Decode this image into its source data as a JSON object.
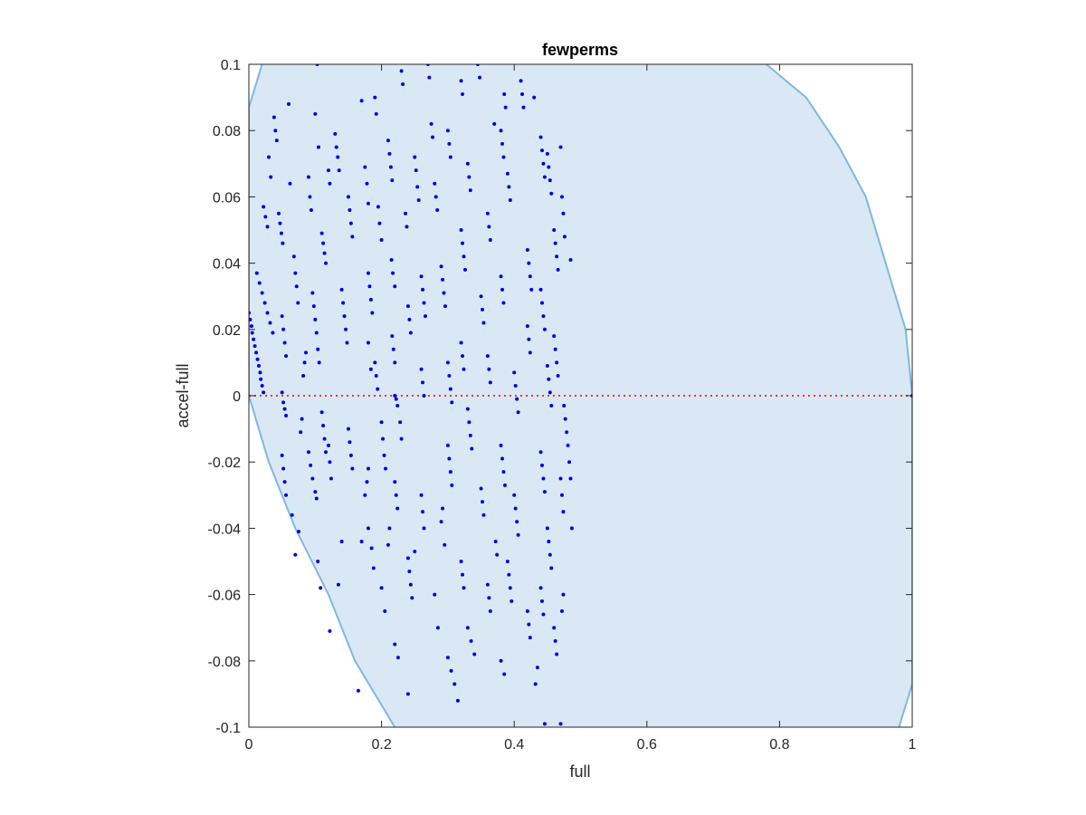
{
  "chart_data": {
    "type": "scatter",
    "title": "fewperms",
    "xlabel": "full",
    "ylabel": "accel-full",
    "xlim": [
      0,
      1
    ],
    "ylim": [
      -0.1,
      0.1
    ],
    "xticks": [
      "0",
      "0.2",
      "0.4",
      "0.6",
      "0.8",
      "1"
    ],
    "xtick_values": [
      0,
      0.2,
      0.4,
      0.6,
      0.8,
      1
    ],
    "yticks": [
      "0.1",
      "0.08",
      "0.06",
      "0.04",
      "0.02",
      "0",
      "-0.02",
      "-0.04",
      "-0.06",
      "-0.08",
      "-0.1"
    ],
    "ytick_values": [
      0.1,
      0.08,
      0.06,
      0.04,
      0.02,
      0,
      -0.02,
      -0.04,
      -0.06,
      -0.08,
      -0.1
    ],
    "grid": false,
    "legend": "none",
    "reference_line": {
      "y": 0,
      "style": "dotted",
      "color": "#e8382b"
    },
    "region": {
      "fill": "#d9e8f4",
      "edge": "#7fb8de",
      "left_boundary": [
        [
          0.02,
          0.1
        ],
        [
          0.0,
          0.087
        ],
        [
          0.0,
          0.0
        ],
        [
          0.03,
          -0.02
        ],
        [
          0.07,
          -0.04
        ],
        [
          0.12,
          -0.06
        ],
        [
          0.16,
          -0.08
        ],
        [
          0.22,
          -0.1
        ]
      ],
      "right_boundary": [
        [
          0.78,
          0.1
        ],
        [
          0.84,
          0.09
        ],
        [
          0.89,
          0.075
        ],
        [
          0.93,
          0.06
        ],
        [
          0.96,
          0.04
        ],
        [
          0.99,
          0.02
        ],
        [
          1.0,
          0.0
        ],
        [
          1.0,
          -0.087
        ],
        [
          0.98,
          -0.1
        ]
      ]
    },
    "points_color": "#0000e6",
    "points": [
      [
        0.0,
        0.025
      ],
      [
        0.002,
        0.023
      ],
      [
        0.004,
        0.021
      ],
      [
        0.005,
        0.019
      ],
      [
        0.007,
        0.017
      ],
      [
        0.009,
        0.015
      ],
      [
        0.011,
        0.013
      ],
      [
        0.013,
        0.011
      ],
      [
        0.015,
        0.009
      ],
      [
        0.017,
        0.007
      ],
      [
        0.018,
        0.005
      ],
      [
        0.02,
        0.003
      ],
      [
        0.022,
        0.001
      ],
      [
        0.012,
        0.037
      ],
      [
        0.016,
        0.034
      ],
      [
        0.02,
        0.031
      ],
      [
        0.024,
        0.028
      ],
      [
        0.028,
        0.025
      ],
      [
        0.032,
        0.022
      ],
      [
        0.036,
        0.019
      ],
      [
        0.022,
        0.057
      ],
      [
        0.025,
        0.054
      ],
      [
        0.028,
        0.051
      ],
      [
        0.03,
        0.072
      ],
      [
        0.033,
        0.066
      ],
      [
        0.038,
        0.084
      ],
      [
        0.04,
        0.08
      ],
      [
        0.042,
        0.077
      ],
      [
        0.045,
        0.055
      ],
      [
        0.047,
        0.052
      ],
      [
        0.049,
        0.049
      ],
      [
        0.051,
        0.046
      ],
      [
        0.05,
        0.024
      ],
      [
        0.052,
        0.02
      ],
      [
        0.054,
        0.016
      ],
      [
        0.056,
        0.012
      ],
      [
        0.05,
        0.001
      ],
      [
        0.052,
        -0.002
      ],
      [
        0.054,
        -0.004
      ],
      [
        0.056,
        -0.006
      ],
      [
        0.05,
        -0.018
      ],
      [
        0.052,
        -0.022
      ],
      [
        0.054,
        -0.026
      ],
      [
        0.056,
        -0.03
      ],
      [
        0.06,
        0.088
      ],
      [
        0.062,
        0.064
      ],
      [
        0.068,
        0.042
      ],
      [
        0.07,
        0.037
      ],
      [
        0.072,
        0.033
      ],
      [
        0.074,
        0.028
      ],
      [
        0.065,
        -0.036
      ],
      [
        0.07,
        -0.048
      ],
      [
        0.075,
        -0.041
      ],
      [
        0.078,
        -0.011
      ],
      [
        0.08,
        -0.007
      ],
      [
        0.082,
        0.006
      ],
      [
        0.084,
        0.01
      ],
      [
        0.086,
        0.013
      ],
      [
        0.09,
        0.066
      ],
      [
        0.092,
        0.06
      ],
      [
        0.094,
        0.056
      ],
      [
        0.096,
        0.031
      ],
      [
        0.098,
        0.027
      ],
      [
        0.1,
        0.023
      ],
      [
        0.102,
        0.019
      ],
      [
        0.104,
        0.014
      ],
      [
        0.106,
        0.01
      ],
      [
        0.1,
        0.085
      ],
      [
        0.103,
        0.1
      ],
      [
        0.105,
        0.075
      ],
      [
        0.09,
        -0.017
      ],
      [
        0.093,
        -0.021
      ],
      [
        0.096,
        -0.025
      ],
      [
        0.1,
        -0.029
      ],
      [
        0.102,
        -0.031
      ],
      [
        0.11,
        0.049
      ],
      [
        0.112,
        0.046
      ],
      [
        0.114,
        0.043
      ],
      [
        0.116,
        0.04
      ],
      [
        0.12,
        0.068
      ],
      [
        0.122,
        0.064
      ],
      [
        0.13,
        0.079
      ],
      [
        0.132,
        0.075
      ],
      [
        0.134,
        0.072
      ],
      [
        0.136,
        0.068
      ],
      [
        0.11,
        -0.005
      ],
      [
        0.112,
        -0.009
      ],
      [
        0.114,
        -0.013
      ],
      [
        0.116,
        -0.017
      ],
      [
        0.12,
        -0.015
      ],
      [
        0.122,
        -0.02
      ],
      [
        0.124,
        -0.025
      ],
      [
        0.104,
        -0.05
      ],
      [
        0.108,
        -0.058
      ],
      [
        0.122,
        -0.071
      ],
      [
        0.135,
        -0.057
      ],
      [
        0.14,
        -0.044
      ],
      [
        0.14,
        0.032
      ],
      [
        0.142,
        0.028
      ],
      [
        0.144,
        0.024
      ],
      [
        0.146,
        0.02
      ],
      [
        0.148,
        0.016
      ],
      [
        0.15,
        0.06
      ],
      [
        0.152,
        0.056
      ],
      [
        0.154,
        0.052
      ],
      [
        0.156,
        0.048
      ],
      [
        0.15,
        -0.01
      ],
      [
        0.152,
        -0.014
      ],
      [
        0.154,
        -0.018
      ],
      [
        0.156,
        -0.022
      ],
      [
        0.165,
        -0.089
      ],
      [
        0.17,
        -0.044
      ],
      [
        0.175,
        -0.03
      ],
      [
        0.178,
        -0.026
      ],
      [
        0.18,
        -0.022
      ],
      [
        0.17,
        0.089
      ],
      [
        0.175,
        0.069
      ],
      [
        0.178,
        0.064
      ],
      [
        0.18,
        0.058
      ],
      [
        0.18,
        0.037
      ],
      [
        0.182,
        0.033
      ],
      [
        0.184,
        0.029
      ],
      [
        0.186,
        0.025
      ],
      [
        0.19,
        0.09
      ],
      [
        0.192,
        0.085
      ],
      [
        0.195,
        0.057
      ],
      [
        0.197,
        0.052
      ],
      [
        0.2,
        0.047
      ],
      [
        0.19,
        0.01
      ],
      [
        0.192,
        0.006
      ],
      [
        0.194,
        0.002
      ],
      [
        0.18,
        0.016
      ],
      [
        0.184,
        0.008
      ],
      [
        0.18,
        -0.04
      ],
      [
        0.185,
        -0.046
      ],
      [
        0.188,
        -0.052
      ],
      [
        0.2,
        -0.008
      ],
      [
        0.202,
        -0.013
      ],
      [
        0.204,
        -0.018
      ],
      [
        0.206,
        -0.022
      ],
      [
        0.2,
        -0.058
      ],
      [
        0.205,
        -0.065
      ],
      [
        0.21,
        -0.045
      ],
      [
        0.212,
        -0.04
      ],
      [
        0.21,
        0.077
      ],
      [
        0.212,
        0.073
      ],
      [
        0.214,
        0.069
      ],
      [
        0.216,
        0.065
      ],
      [
        0.215,
        0.041
      ],
      [
        0.217,
        0.037
      ],
      [
        0.22,
        0.033
      ],
      [
        0.216,
        0.018
      ],
      [
        0.218,
        0.014
      ],
      [
        0.22,
        0.01
      ],
      [
        0.22,
        -0.026
      ],
      [
        0.222,
        -0.03
      ],
      [
        0.224,
        -0.034
      ],
      [
        0.228,
        -0.008
      ],
      [
        0.23,
        -0.013
      ],
      [
        0.22,
        0.0
      ],
      [
        0.222,
        -0.001
      ],
      [
        0.224,
        -0.003
      ],
      [
        0.23,
        0.098
      ],
      [
        0.232,
        0.094
      ],
      [
        0.236,
        0.055
      ],
      [
        0.238,
        0.051
      ],
      [
        0.24,
        0.027
      ],
      [
        0.242,
        0.023
      ],
      [
        0.244,
        0.019
      ],
      [
        0.24,
        -0.049
      ],
      [
        0.242,
        -0.053
      ],
      [
        0.244,
        -0.057
      ],
      [
        0.246,
        -0.061
      ],
      [
        0.22,
        -0.075
      ],
      [
        0.225,
        -0.079
      ],
      [
        0.24,
        -0.09
      ],
      [
        0.25,
        -0.047
      ],
      [
        0.25,
        0.072
      ],
      [
        0.252,
        0.068
      ],
      [
        0.254,
        0.063
      ],
      [
        0.256,
        0.059
      ],
      [
        0.26,
        0.036
      ],
      [
        0.262,
        0.032
      ],
      [
        0.264,
        0.028
      ],
      [
        0.266,
        0.024
      ],
      [
        0.26,
        0.008
      ],
      [
        0.262,
        0.004
      ],
      [
        0.264,
        0.0
      ],
      [
        0.26,
        -0.03
      ],
      [
        0.262,
        -0.035
      ],
      [
        0.264,
        -0.04
      ],
      [
        0.27,
        0.1
      ],
      [
        0.272,
        0.096
      ],
      [
        0.275,
        0.082
      ],
      [
        0.277,
        0.078
      ],
      [
        0.28,
        0.064
      ],
      [
        0.282,
        0.06
      ],
      [
        0.284,
        0.056
      ],
      [
        0.29,
        0.039
      ],
      [
        0.292,
        0.035
      ],
      [
        0.294,
        0.031
      ],
      [
        0.296,
        0.027
      ],
      [
        0.28,
        -0.06
      ],
      [
        0.285,
        -0.07
      ],
      [
        0.29,
        -0.038
      ],
      [
        0.292,
        -0.034
      ],
      [
        0.295,
        -0.045
      ],
      [
        0.3,
        0.08
      ],
      [
        0.302,
        0.076
      ],
      [
        0.304,
        0.072
      ],
      [
        0.3,
        0.01
      ],
      [
        0.302,
        0.006
      ],
      [
        0.304,
        0.002
      ],
      [
        0.306,
        -0.002
      ],
      [
        0.3,
        -0.015
      ],
      [
        0.302,
        -0.019
      ],
      [
        0.304,
        -0.023
      ],
      [
        0.306,
        -0.027
      ],
      [
        0.3,
        -0.079
      ],
      [
        0.305,
        -0.083
      ],
      [
        0.31,
        -0.087
      ],
      [
        0.315,
        -0.092
      ],
      [
        0.32,
        0.095
      ],
      [
        0.322,
        0.091
      ],
      [
        0.32,
        0.05
      ],
      [
        0.322,
        0.046
      ],
      [
        0.324,
        0.042
      ],
      [
        0.326,
        0.038
      ],
      [
        0.32,
        0.016
      ],
      [
        0.322,
        0.012
      ],
      [
        0.324,
        0.008
      ],
      [
        0.32,
        -0.05
      ],
      [
        0.322,
        -0.054
      ],
      [
        0.324,
        -0.058
      ],
      [
        0.33,
        0.07
      ],
      [
        0.332,
        0.066
      ],
      [
        0.334,
        0.062
      ],
      [
        0.33,
        -0.004
      ],
      [
        0.332,
        -0.008
      ],
      [
        0.334,
        -0.012
      ],
      [
        0.336,
        -0.016
      ],
      [
        0.33,
        -0.07
      ],
      [
        0.335,
        -0.074
      ],
      [
        0.34,
        -0.078
      ],
      [
        0.345,
        0.1
      ],
      [
        0.348,
        0.096
      ],
      [
        0.35,
        0.03
      ],
      [
        0.352,
        0.026
      ],
      [
        0.354,
        0.022
      ],
      [
        0.35,
        -0.028
      ],
      [
        0.352,
        -0.032
      ],
      [
        0.354,
        -0.036
      ],
      [
        0.36,
        0.055
      ],
      [
        0.362,
        0.051
      ],
      [
        0.364,
        0.047
      ],
      [
        0.36,
        0.012
      ],
      [
        0.362,
        0.008
      ],
      [
        0.364,
        0.004
      ],
      [
        0.36,
        -0.057
      ],
      [
        0.362,
        -0.061
      ],
      [
        0.364,
        -0.065
      ],
      [
        0.37,
        0.082
      ],
      [
        0.372,
        -0.044
      ],
      [
        0.374,
        -0.048
      ],
      [
        0.38,
        0.08
      ],
      [
        0.382,
        0.076
      ],
      [
        0.384,
        0.072
      ],
      [
        0.38,
        0.036
      ],
      [
        0.382,
        0.032
      ],
      [
        0.384,
        0.028
      ],
      [
        0.385,
        0.091
      ],
      [
        0.387,
        0.087
      ],
      [
        0.38,
        -0.015
      ],
      [
        0.382,
        -0.019
      ],
      [
        0.384,
        -0.023
      ],
      [
        0.386,
        -0.027
      ],
      [
        0.38,
        -0.08
      ],
      [
        0.385,
        -0.084
      ],
      [
        0.39,
        0.067
      ],
      [
        0.392,
        0.063
      ],
      [
        0.394,
        0.059
      ],
      [
        0.39,
        -0.05
      ],
      [
        0.392,
        -0.054
      ],
      [
        0.394,
        -0.058
      ],
      [
        0.396,
        -0.062
      ],
      [
        0.4,
        0.007
      ],
      [
        0.402,
        0.003
      ],
      [
        0.404,
        -0.001
      ],
      [
        0.406,
        -0.005
      ],
      [
        0.4,
        -0.03
      ],
      [
        0.402,
        -0.034
      ],
      [
        0.404,
        -0.038
      ],
      [
        0.406,
        -0.042
      ],
      [
        0.41,
        0.095
      ],
      [
        0.412,
        0.091
      ],
      [
        0.414,
        0.087
      ],
      [
        0.42,
        0.044
      ],
      [
        0.422,
        0.04
      ],
      [
        0.424,
        0.036
      ],
      [
        0.426,
        0.032
      ],
      [
        0.42,
        0.021
      ],
      [
        0.422,
        0.017
      ],
      [
        0.424,
        0.013
      ],
      [
        0.42,
        -0.065
      ],
      [
        0.422,
        -0.069
      ],
      [
        0.424,
        -0.073
      ],
      [
        0.43,
        0.09
      ],
      [
        0.432,
        -0.087
      ],
      [
        0.435,
        -0.082
      ],
      [
        0.44,
        0.078
      ],
      [
        0.442,
        0.074
      ],
      [
        0.444,
        0.07
      ],
      [
        0.446,
        0.066
      ],
      [
        0.44,
        0.032
      ],
      [
        0.442,
        0.028
      ],
      [
        0.444,
        0.024
      ],
      [
        0.446,
        0.02
      ],
      [
        0.44,
        -0.017
      ],
      [
        0.442,
        -0.021
      ],
      [
        0.444,
        -0.025
      ],
      [
        0.446,
        -0.029
      ],
      [
        0.44,
        -0.058
      ],
      [
        0.442,
        -0.062
      ],
      [
        0.444,
        -0.066
      ],
      [
        0.446,
        -0.099
      ],
      [
        0.45,
        0.073
      ],
      [
        0.452,
        0.069
      ],
      [
        0.454,
        0.065
      ],
      [
        0.456,
        0.061
      ],
      [
        0.45,
        0.009
      ],
      [
        0.452,
        0.005
      ],
      [
        0.454,
        0.001
      ],
      [
        0.456,
        -0.003
      ],
      [
        0.45,
        -0.04
      ],
      [
        0.452,
        -0.044
      ],
      [
        0.454,
        -0.048
      ],
      [
        0.456,
        -0.052
      ],
      [
        0.46,
        0.05
      ],
      [
        0.462,
        0.046
      ],
      [
        0.464,
        0.042
      ],
      [
        0.466,
        0.038
      ],
      [
        0.46,
        0.018
      ],
      [
        0.462,
        0.014
      ],
      [
        0.464,
        0.01
      ],
      [
        0.466,
        0.006
      ],
      [
        0.46,
        -0.07
      ],
      [
        0.462,
        -0.074
      ],
      [
        0.464,
        -0.078
      ],
      [
        0.47,
        0.075
      ],
      [
        0.472,
        0.06
      ],
      [
        0.474,
        0.055
      ],
      [
        0.476,
        0.048
      ],
      [
        0.47,
        -0.025
      ],
      [
        0.472,
        -0.03
      ],
      [
        0.474,
        -0.035
      ],
      [
        0.47,
        -0.099
      ],
      [
        0.472,
        -0.065
      ],
      [
        0.474,
        -0.06
      ],
      [
        0.475,
        -0.003
      ],
      [
        0.477,
        -0.007
      ],
      [
        0.479,
        -0.011
      ],
      [
        0.481,
        -0.015
      ],
      [
        0.483,
        -0.02
      ],
      [
        0.485,
        -0.025
      ],
      [
        0.487,
        -0.04
      ],
      [
        0.485,
        0.041
      ],
      [
        1.0,
        0.0
      ]
    ]
  }
}
